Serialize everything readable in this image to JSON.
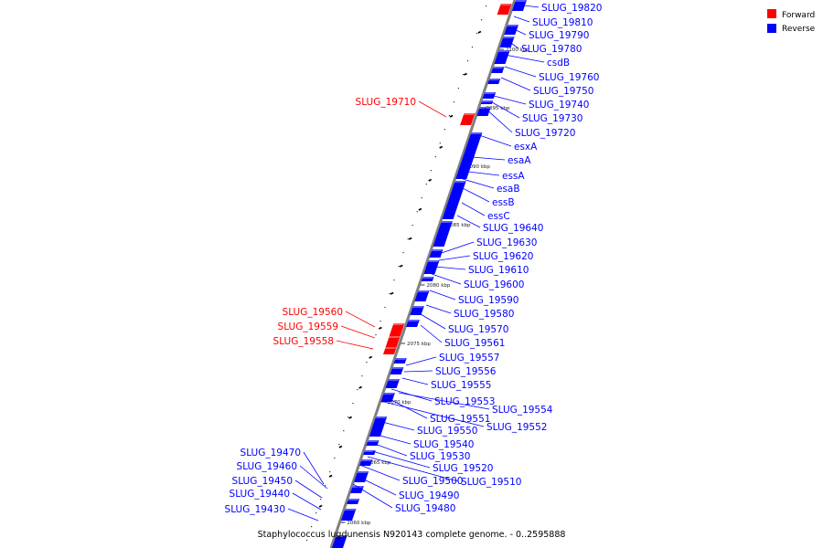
{
  "caption": "Staphylococcus lugdunensis N920143 complete genome. - 0..2595888",
  "legend": [
    {
      "label": "Forward",
      "color": "#ff0000"
    },
    {
      "label": "Reverse",
      "color": "#0000ff"
    }
  ],
  "colors": {
    "forward": "#ff0000",
    "reverse": "#0000ff",
    "axis": "#808080"
  },
  "ticks": [
    "2100 kbp",
    "2095 kbp",
    "2090 kbp",
    "2085 kbp",
    "2080 kbp",
    "2075 kbp",
    "2070 kbp",
    "2065 kbp",
    "2060 kbp"
  ],
  "forward_genes": [
    "SLUG_19710",
    "SLUG_19560",
    "SLUG_19559",
    "SLUG_19558"
  ],
  "reverse_genes": [
    "SLUG_19820",
    "SLUG_19810",
    "SLUG_19790",
    "SLUG_19780",
    "csdB",
    "SLUG_19760",
    "SLUG_19750",
    "SLUG_19740",
    "SLUG_19730",
    "SLUG_19720",
    "esxA",
    "esaA",
    "essA",
    "esaB",
    "essB",
    "essC",
    "SLUG_19640",
    "SLUG_19630",
    "SLUG_19620",
    "SLUG_19610",
    "SLUG_19600",
    "SLUG_19590",
    "SLUG_19580",
    "SLUG_19570",
    "SLUG_19561",
    "SLUG_19557",
    "SLUG_19556",
    "SLUG_19555",
    "SLUG_19553",
    "SLUG_19554",
    "SLUG_19551",
    "SLUG_19552",
    "SLUG_19550",
    "SLUG_19540",
    "SLUG_19530",
    "SLUG_19520",
    "SLUG_19510",
    "SLUG_19500",
    "SLUG_19490",
    "SLUG_19480",
    "SLUG_19470",
    "SLUG_19460",
    "SLUG_19450",
    "SLUG_19440",
    "SLUG_19430"
  ]
}
